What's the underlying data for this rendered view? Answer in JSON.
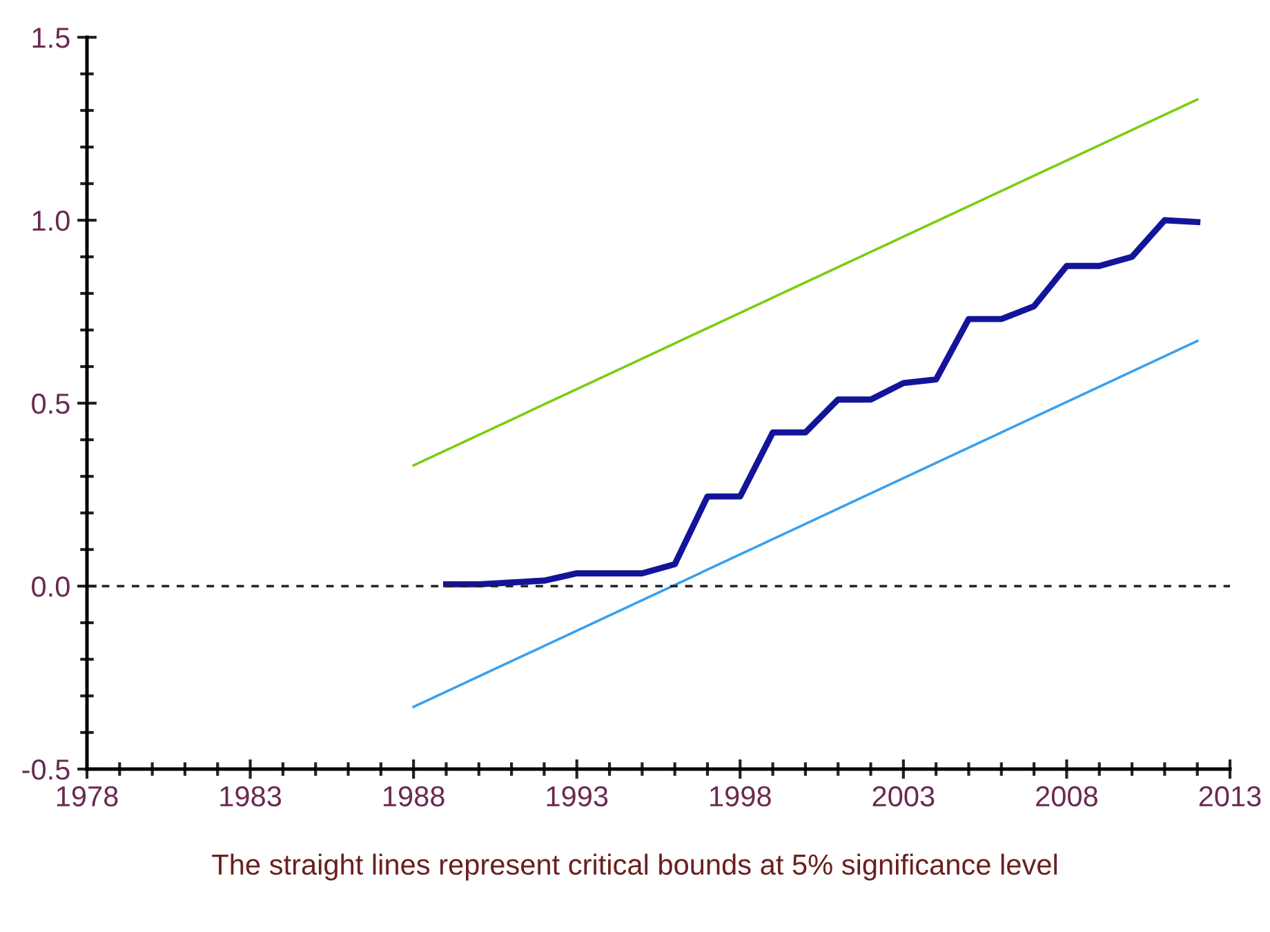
{
  "chart_data": {
    "type": "line",
    "xlim": [
      1978,
      2013
    ],
    "xticks": [
      1978,
      1983,
      1988,
      1993,
      1998,
      2003,
      2008,
      2013
    ],
    "ylim": [
      -0.5,
      1.5
    ],
    "yticks": [
      {
        "value": -0.5,
        "label": "-0.5"
      },
      {
        "value": 0,
        "label": "0.0"
      },
      {
        "value": 0.5,
        "label": "0.5"
      },
      {
        "value": 1.0,
        "label": "1.0"
      },
      {
        "value": 1.5,
        "label": "1.5"
      }
    ],
    "series": [
      {
        "color": "#14149a",
        "x": [
          1989,
          1990,
          1991,
          1992,
          1993,
          1994,
          1995,
          1996,
          1997,
          1998,
          1999,
          2000,
          2001,
          2002,
          2003,
          2004,
          2005,
          2006,
          2007,
          2008,
          2009,
          2010,
          2011,
          2012
        ],
        "values": [
          0.005,
          0.005,
          0.01,
          0.015,
          0.035,
          0.035,
          0.035,
          0.06,
          0.245,
          0.245,
          0.42,
          0.42,
          0.51,
          0.51,
          0.555,
          0.565,
          0.73,
          0.73,
          0.765,
          0.875,
          0.875,
          0.9,
          1.0,
          0.995
        ]
      },
      {
        "color": "#7ccc10",
        "x": [
          1988,
          2012
        ],
        "values": [
          0.33,
          1.33
        ]
      },
      {
        "color": "#3aa0ee",
        "x": [
          1988,
          2012
        ],
        "values": [
          -0.33,
          0.67
        ]
      }
    ],
    "ref_lines": [
      {
        "axis": "y",
        "value": 0,
        "color": "#222222",
        "line_style": "dashed"
      }
    ],
    "grid": false,
    "legend": false,
    "annotations": [
      "The straight lines represent critical bounds at 5% significance level"
    ]
  }
}
